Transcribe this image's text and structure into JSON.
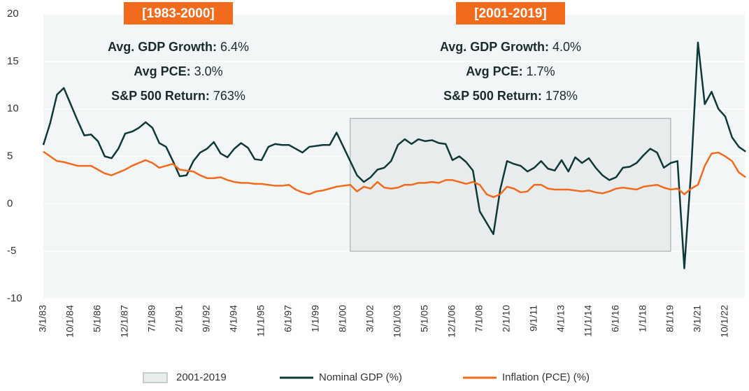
{
  "chart_data": {
    "type": "line",
    "categories": [
      "3/1/83",
      null,
      null,
      null,
      "10/1/84",
      null,
      null,
      null,
      "5/1/86",
      null,
      null,
      null,
      "12/1/87",
      null,
      null,
      null,
      "7/1/89",
      null,
      null,
      null,
      "2/1/91",
      null,
      null,
      null,
      "9/1/92",
      null,
      null,
      null,
      "4/1/94",
      null,
      null,
      null,
      "11/1/95",
      null,
      null,
      null,
      "6/1/97",
      null,
      null,
      null,
      "1/1/99",
      null,
      null,
      null,
      "8/1/00",
      null,
      null,
      null,
      "3/1/02",
      null,
      null,
      null,
      "10/1/03",
      null,
      null,
      null,
      "5/1/05",
      null,
      null,
      null,
      "12/1/06",
      null,
      null,
      null,
      "7/1/08",
      null,
      null,
      null,
      "2/1/10",
      null,
      null,
      null,
      "9/1/11",
      null,
      null,
      null,
      "4/1/13",
      null,
      null,
      null,
      "11/1/14",
      null,
      null,
      null,
      "6/1/16",
      null,
      null,
      null,
      "1/1/18",
      null,
      null,
      null,
      "8/1/19",
      null,
      null,
      null,
      "3/1/21",
      null,
      null,
      null,
      "10/1/22",
      null,
      null,
      null
    ],
    "series": [
      {
        "name": "Nominal GDP (%)",
        "color": "#0f3838",
        "values": [
          6.2,
          8.5,
          11.5,
          12.2,
          10.5,
          8.8,
          7.2,
          7.3,
          6.6,
          5.0,
          4.8,
          5.8,
          7.4,
          7.6,
          8.0,
          8.6,
          8.0,
          6.4,
          6.0,
          4.5,
          2.9,
          3.0,
          4.5,
          5.4,
          5.8,
          6.5,
          5.3,
          4.9,
          5.8,
          6.4,
          5.9,
          4.7,
          4.6,
          6.0,
          6.3,
          6.2,
          6.2,
          5.8,
          5.4,
          6.0,
          6.1,
          6.2,
          6.2,
          7.5,
          6.0,
          4.5,
          3.0,
          2.3,
          2.8,
          3.6,
          3.8,
          4.5,
          6.2,
          6.8,
          6.3,
          6.8,
          6.6,
          6.7,
          6.4,
          6.3,
          4.6,
          5.0,
          4.4,
          3.5,
          -0.8,
          -2.0,
          -3.2,
          1.5,
          4.5,
          4.2,
          4.0,
          3.4,
          3.8,
          4.5,
          3.7,
          3.5,
          4.6,
          3.4,
          4.9,
          4.3,
          4.8,
          3.8,
          3.0,
          2.5,
          2.8,
          3.8,
          3.9,
          4.3,
          5.1,
          5.8,
          5.4,
          3.8,
          4.3,
          4.5,
          -6.8,
          3.5,
          17.0,
          10.5,
          11.8,
          10.0,
          9.2,
          7.0,
          6.0,
          5.5
        ]
      },
      {
        "name": "Inflation (PCE) (%)",
        "color": "#f26a1b",
        "values": [
          5.5,
          5.0,
          4.5,
          4.4,
          4.2,
          4.0,
          4.0,
          4.0,
          3.6,
          3.2,
          3.0,
          3.3,
          3.6,
          4.0,
          4.3,
          4.6,
          4.3,
          3.8,
          4.0,
          4.2,
          3.6,
          3.5,
          3.4,
          3.0,
          2.7,
          2.7,
          2.8,
          2.5,
          2.3,
          2.2,
          2.2,
          2.1,
          2.1,
          2.0,
          1.9,
          1.9,
          2.0,
          1.5,
          1.2,
          1.0,
          1.3,
          1.4,
          1.6,
          1.8,
          1.9,
          2.0,
          1.3,
          1.8,
          1.6,
          2.3,
          1.7,
          1.6,
          1.7,
          2.0,
          2.0,
          2.2,
          2.2,
          2.3,
          2.2,
          2.5,
          2.5,
          2.3,
          2.1,
          2.3,
          2.0,
          1.0,
          0.7,
          1.0,
          1.8,
          1.6,
          1.2,
          1.3,
          2.0,
          2.0,
          1.6,
          1.5,
          1.5,
          1.5,
          1.4,
          1.3,
          1.4,
          1.2,
          1.1,
          1.3,
          1.6,
          1.7,
          1.6,
          1.5,
          1.8,
          1.9,
          2.0,
          1.7,
          1.5,
          1.6,
          1.0,
          1.6,
          2.0,
          4.0,
          5.3,
          5.4,
          5.0,
          4.5,
          3.3,
          2.8
        ]
      }
    ],
    "shade": {
      "name": "2001-2019",
      "color": "#e8ecec",
      "from": 45,
      "to": 92,
      "ylim": [
        -5,
        9
      ]
    },
    "ylim": [
      -10,
      20
    ],
    "yticks": [
      -10,
      -5,
      0,
      5,
      10,
      15,
      20
    ],
    "grid": true,
    "legend": "bottom",
    "annotations": [
      {
        "heading": "[1983-2000]",
        "lines": [
          {
            "label": "Avg. GDP Growth:",
            "value": "6.4%"
          },
          {
            "label": "Avg PCE:",
            "value": "3.0%"
          },
          {
            "label": "S&P 500 Return:",
            "value": "763%"
          }
        ]
      },
      {
        "heading": "[2001-2019]",
        "lines": [
          {
            "label": "Avg. GDP Growth:",
            "value": "4.0%"
          },
          {
            "label": "Avg PCE:",
            "value": "1.7%"
          },
          {
            "label": "S&P 500 Return:",
            "value": "178%"
          }
        ]
      }
    ]
  }
}
